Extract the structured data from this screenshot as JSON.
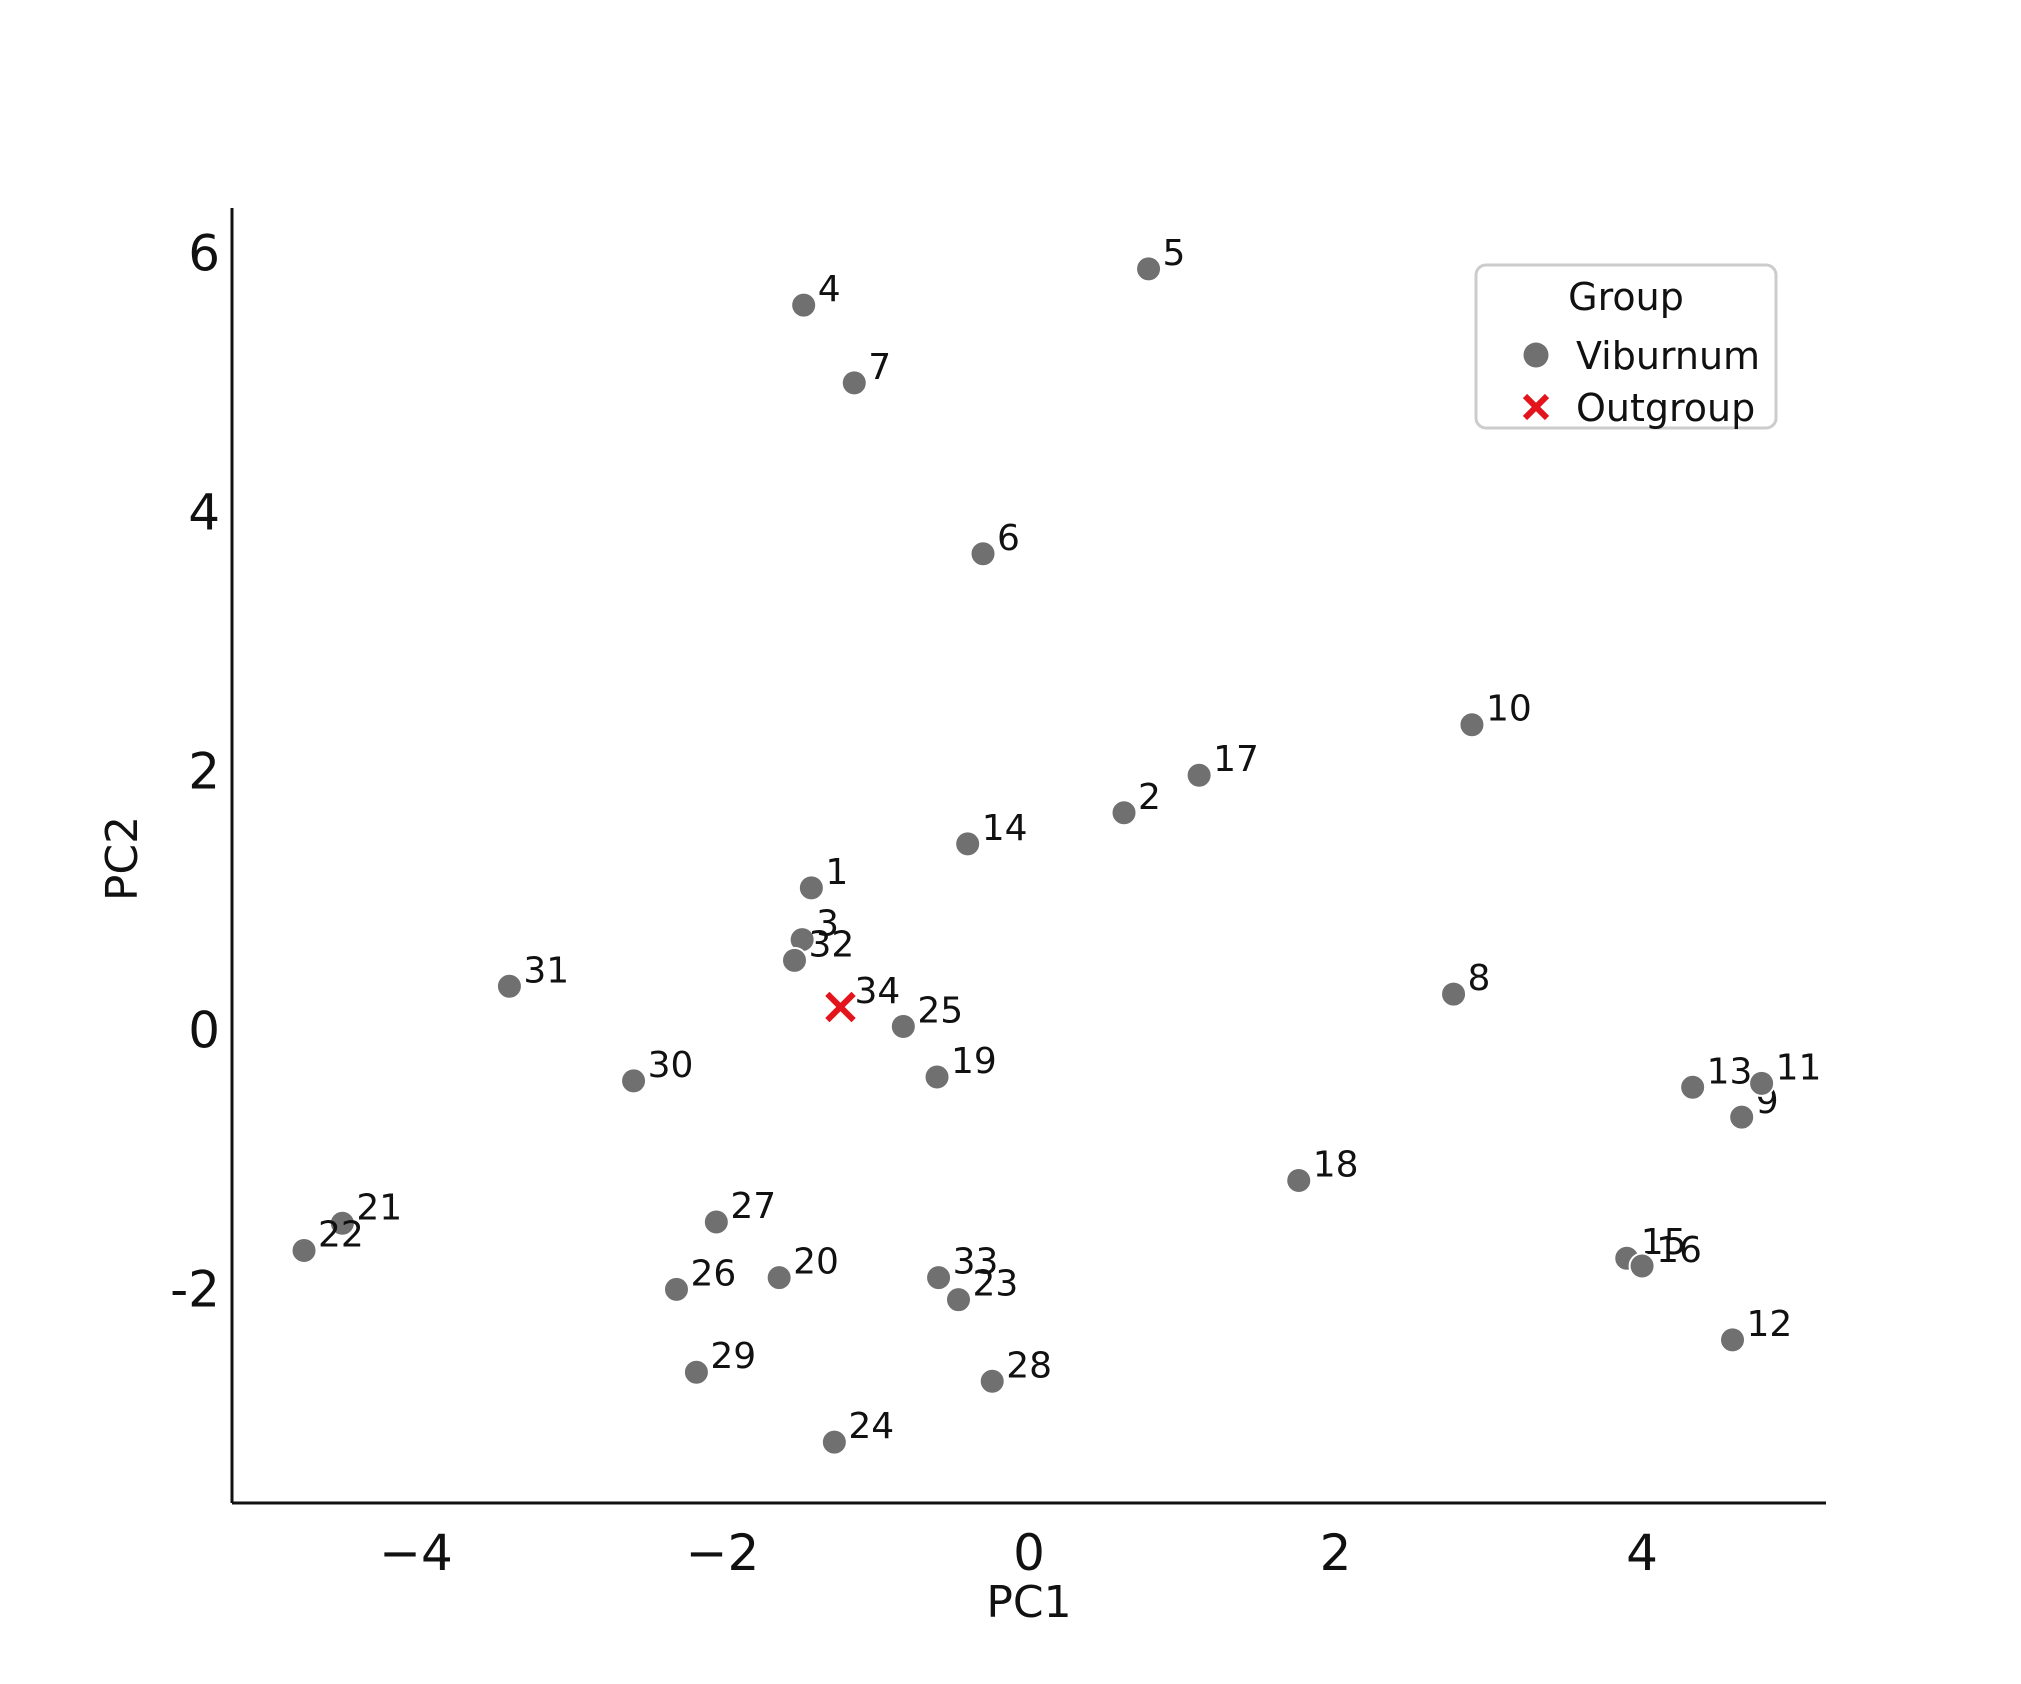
{
  "chart_data": {
    "type": "scatter",
    "title": "",
    "xlabel": "PC1",
    "ylabel": "PC2",
    "xlim": [
      -5.2,
      5.2
    ],
    "ylim": [
      -3.65,
      6.35
    ],
    "xticks": [
      {
        "value": -4,
        "label": "−4"
      },
      {
        "value": -2,
        "label": "−2"
      },
      {
        "value": 0,
        "label": "0"
      },
      {
        "value": 2,
        "label": "2"
      },
      {
        "value": 4,
        "label": "4"
      }
    ],
    "yticks": [
      {
        "value": -2,
        "label": "-2"
      },
      {
        "value": 0,
        "label": "0"
      },
      {
        "value": 2,
        "label": "2"
      },
      {
        "value": 4,
        "label": "4"
      },
      {
        "value": 6,
        "label": "6"
      }
    ],
    "grid": false,
    "legend": {
      "title": "Group",
      "position": "top-right",
      "entries": [
        {
          "label": "Viburnum",
          "marker": "circle",
          "color": "#707070"
        },
        {
          "label": "Outgroup",
          "marker": "x",
          "color": "#e3141b"
        }
      ]
    },
    "series": [
      {
        "name": "Viburnum",
        "marker": "circle",
        "color": "#707070",
        "points": [
          {
            "label": "1",
            "x": -1.42,
            "y": 1.1
          },
          {
            "label": "2",
            "x": 0.62,
            "y": 1.68
          },
          {
            "label": "3",
            "x": -1.48,
            "y": 0.7
          },
          {
            "label": "4",
            "x": -1.47,
            "y": 5.6
          },
          {
            "label": "5",
            "x": 0.78,
            "y": 5.88
          },
          {
            "label": "6",
            "x": -0.3,
            "y": 3.68
          },
          {
            "label": "7",
            "x": -1.14,
            "y": 5.0
          },
          {
            "label": "8",
            "x": 2.77,
            "y": 0.28
          },
          {
            "label": "9",
            "x": 4.65,
            "y": -0.67
          },
          {
            "label": "10",
            "x": 2.89,
            "y": 2.36
          },
          {
            "label": "11",
            "x": 4.78,
            "y": -0.41
          },
          {
            "label": "12",
            "x": 4.59,
            "y": -2.39
          },
          {
            "label": "13",
            "x": 4.33,
            "y": -0.44
          },
          {
            "label": "14",
            "x": -0.4,
            "y": 1.44
          },
          {
            "label": "15",
            "x": 3.9,
            "y": -1.76
          },
          {
            "label": "16",
            "x": 4.0,
            "y": -1.82
          },
          {
            "label": "17",
            "x": 1.11,
            "y": 1.97
          },
          {
            "label": "18",
            "x": 1.76,
            "y": -1.16
          },
          {
            "label": "19",
            "x": -0.6,
            "y": -0.36
          },
          {
            "label": "20",
            "x": -1.63,
            "y": -1.91
          },
          {
            "label": "21",
            "x": -4.48,
            "y": -1.49
          },
          {
            "label": "22",
            "x": -4.73,
            "y": -1.7
          },
          {
            "label": "23",
            "x": -0.46,
            "y": -2.08
          },
          {
            "label": "24",
            "x": -1.27,
            "y": -3.18
          },
          {
            "label": "25",
            "x": -0.82,
            "y": 0.03
          },
          {
            "label": "26",
            "x": -2.3,
            "y": -2.0
          },
          {
            "label": "27",
            "x": -2.04,
            "y": -1.48
          },
          {
            "label": "28",
            "x": -0.24,
            "y": -2.71
          },
          {
            "label": "29",
            "x": -2.17,
            "y": -2.64
          },
          {
            "label": "30",
            "x": -2.58,
            "y": -0.39
          },
          {
            "label": "31",
            "x": -3.39,
            "y": 0.34
          },
          {
            "label": "32",
            "x": -1.53,
            "y": 0.54
          },
          {
            "label": "33",
            "x": -0.59,
            "y": -1.91
          }
        ]
      },
      {
        "name": "Outgroup",
        "marker": "x",
        "color": "#e3141b",
        "points": [
          {
            "label": "34",
            "x": -1.23,
            "y": 0.18
          }
        ]
      }
    ]
  }
}
